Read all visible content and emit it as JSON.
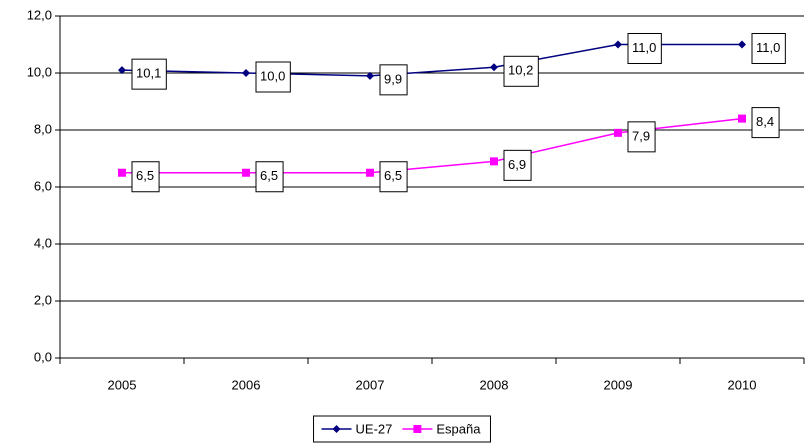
{
  "chart_data": {
    "type": "line",
    "categories": [
      "2005",
      "2006",
      "2007",
      "2008",
      "2009",
      "2010"
    ],
    "series": [
      {
        "name": "UE-27",
        "color": "#000080",
        "marker": "diamond",
        "values": [
          10.1,
          10.0,
          9.9,
          10.2,
          11.0,
          11.0
        ],
        "value_labels": [
          "10,1",
          "10,0",
          "9,9",
          "10,2",
          "11,0",
          "11,0"
        ]
      },
      {
        "name": "España",
        "color": "#ff00ff",
        "marker": "square",
        "values": [
          6.5,
          6.5,
          6.5,
          6.9,
          7.9,
          8.4
        ],
        "value_labels": [
          "6,5",
          "6,5",
          "6,5",
          "6,9",
          "7,9",
          "8,4"
        ]
      }
    ],
    "ylim": [
      0,
      12
    ],
    "yticks": [
      {
        "value": 0,
        "label": "0,0"
      },
      {
        "value": 2,
        "label": "2,0"
      },
      {
        "value": 4,
        "label": "4,0"
      },
      {
        "value": 6,
        "label": "6,0"
      },
      {
        "value": 8,
        "label": "8,0"
      },
      {
        "value": 10,
        "label": "10,0"
      },
      {
        "value": 12,
        "label": "12,0"
      }
    ],
    "grid": true,
    "legend": "bottom"
  }
}
